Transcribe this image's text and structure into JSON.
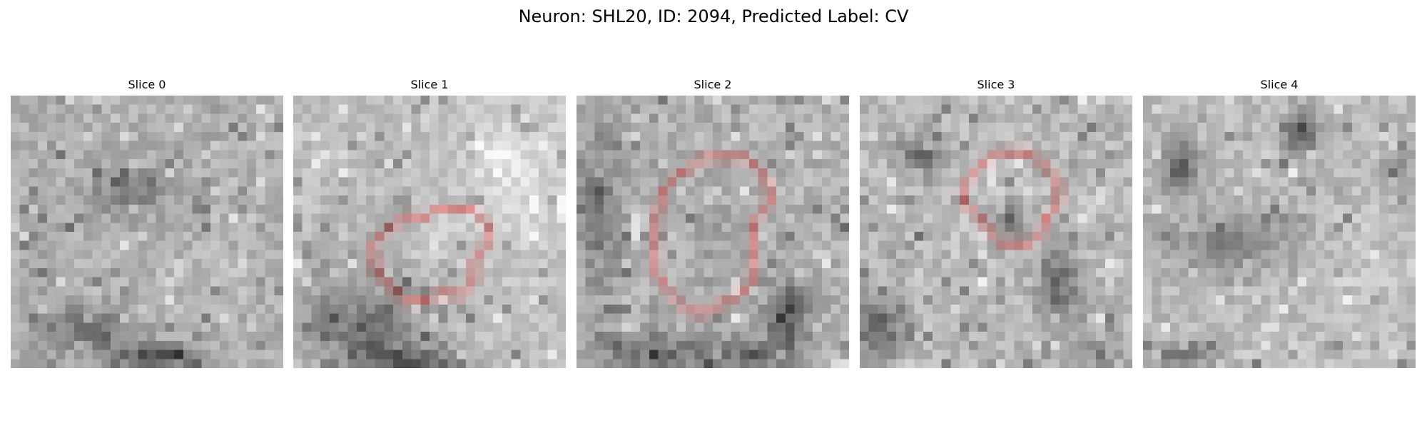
{
  "figure": {
    "title": "Neuron: SHL20, ID: 2094, Predicted Label: CV"
  },
  "colors": {
    "background": "#ffffff",
    "text": "#000000",
    "contour": "#ff0000",
    "colormap": "grayscale"
  },
  "slices": [
    {
      "label": "Slice 0",
      "image": "grayscale-micrograph-slice",
      "has_contour": false
    },
    {
      "label": "Slice 1",
      "image": "grayscale-micrograph-slice",
      "has_contour": true
    },
    {
      "label": "Slice 2",
      "image": "grayscale-micrograph-slice",
      "has_contour": true
    },
    {
      "label": "Slice 3",
      "image": "grayscale-micrograph-slice",
      "has_contour": true
    },
    {
      "label": "Slice 4",
      "image": "grayscale-micrograph-slice",
      "has_contour": false
    }
  ]
}
